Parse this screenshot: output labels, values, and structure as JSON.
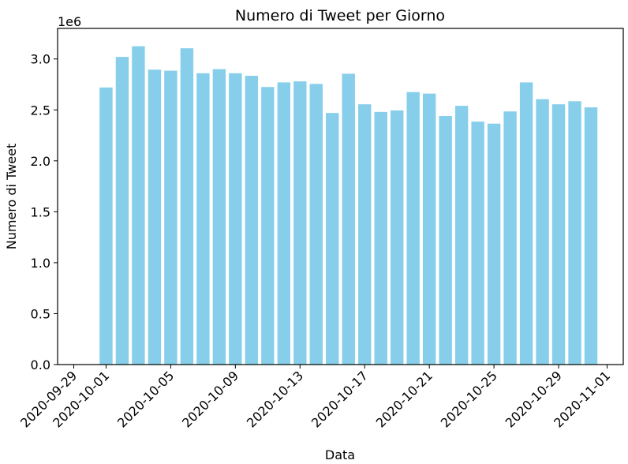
{
  "chart_data": {
    "type": "bar",
    "title": "Numero di Tweet per Giorno",
    "xlabel": "Data",
    "ylabel": "Numero di Tweet",
    "y_offset_label": "1e6",
    "ylim": [
      0,
      3300000
    ],
    "xlim": [
      "2020-09-28",
      "2020-11-02"
    ],
    "bar_color": "#87ceeb",
    "grid": false,
    "y_ticks": [
      {
        "value": 0,
        "label": "0.0"
      },
      {
        "value": 500000,
        "label": "0.5"
      },
      {
        "value": 1000000,
        "label": "1.0"
      },
      {
        "value": 1500000,
        "label": "1.5"
      },
      {
        "value": 2000000,
        "label": "2.0"
      },
      {
        "value": 2500000,
        "label": "2.5"
      },
      {
        "value": 3000000,
        "label": "3.0"
      }
    ],
    "x_ticks": [
      "2020-09-29",
      "2020-10-01",
      "2020-10-05",
      "2020-10-09",
      "2020-10-13",
      "2020-10-17",
      "2020-10-21",
      "2020-10-25",
      "2020-10-29",
      "2020-11-01"
    ],
    "categories": [
      "2020-10-01",
      "2020-10-02",
      "2020-10-03",
      "2020-10-04",
      "2020-10-05",
      "2020-10-06",
      "2020-10-07",
      "2020-10-08",
      "2020-10-09",
      "2020-10-10",
      "2020-10-11",
      "2020-10-12",
      "2020-10-13",
      "2020-10-14",
      "2020-10-15",
      "2020-10-16",
      "2020-10-17",
      "2020-10-18",
      "2020-10-19",
      "2020-10-20",
      "2020-10-21",
      "2020-10-22",
      "2020-10-23",
      "2020-10-24",
      "2020-10-25",
      "2020-10-26",
      "2020-10-27",
      "2020-10-28",
      "2020-10-29",
      "2020-10-30",
      "2020-10-31"
    ],
    "values": [
      2720000,
      3020000,
      3125000,
      2895000,
      2885000,
      3105000,
      2860000,
      2900000,
      2860000,
      2835000,
      2725000,
      2770000,
      2780000,
      2755000,
      2470000,
      2855000,
      2555000,
      2480000,
      2495000,
      2675000,
      2660000,
      2440000,
      2540000,
      2385000,
      2365000,
      2485000,
      2770000,
      2605000,
      2555000,
      2585000,
      2525000
    ]
  }
}
